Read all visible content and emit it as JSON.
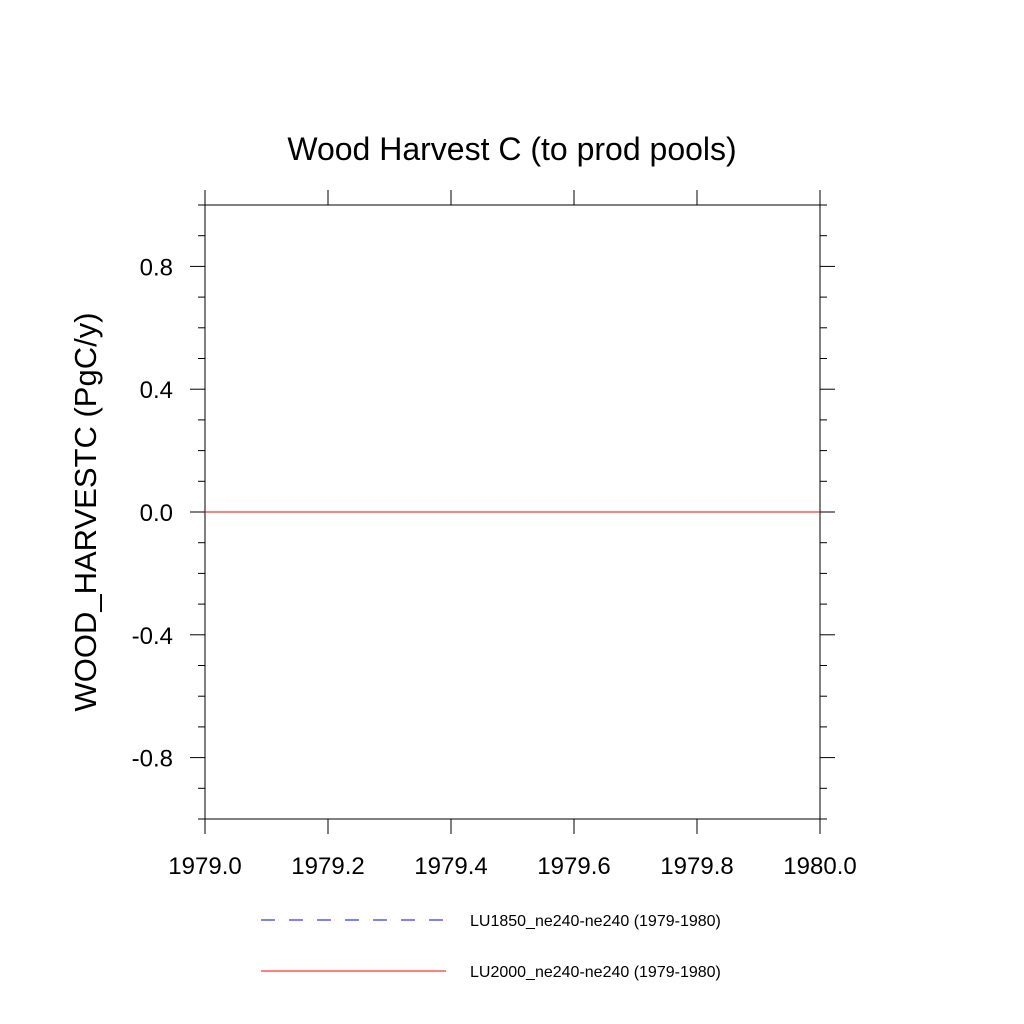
{
  "chart_data": {
    "type": "line",
    "title": "Wood Harvest C (to prod pools)",
    "xlabel": "",
    "ylabel": "WOOD_HARVESTC  (PgC/y)",
    "xlim": [
      1979.0,
      1980.0
    ],
    "ylim": [
      -1.0,
      1.0
    ],
    "x_ticks": [
      1979.0,
      1979.2,
      1979.4,
      1979.6,
      1979.8,
      1980.0
    ],
    "x_tick_labels": [
      "1979.0",
      "1979.2",
      "1979.4",
      "1979.6",
      "1979.8",
      "1980.0"
    ],
    "y_ticks": [
      -0.8,
      -0.4,
      0.0,
      0.4,
      0.8
    ],
    "y_tick_labels": [
      "-0.8",
      "-0.4",
      "0.0",
      "0.4",
      "0.8"
    ],
    "grid": false,
    "legend_position": "bottom",
    "series": [
      {
        "name": "LU1850_ne240-ne240 (1979-1980)",
        "color": "#0000ff",
        "dash": "dashed",
        "x": [
          1979.0,
          1980.0
        ],
        "y": [
          0.0,
          0.0
        ]
      },
      {
        "name": "LU2000_ne240-ne240 (1979-1980)",
        "color": "#ff0000",
        "dash": "solid",
        "x": [
          1979.0,
          1980.0
        ],
        "y": [
          0.0,
          0.0
        ]
      }
    ]
  }
}
